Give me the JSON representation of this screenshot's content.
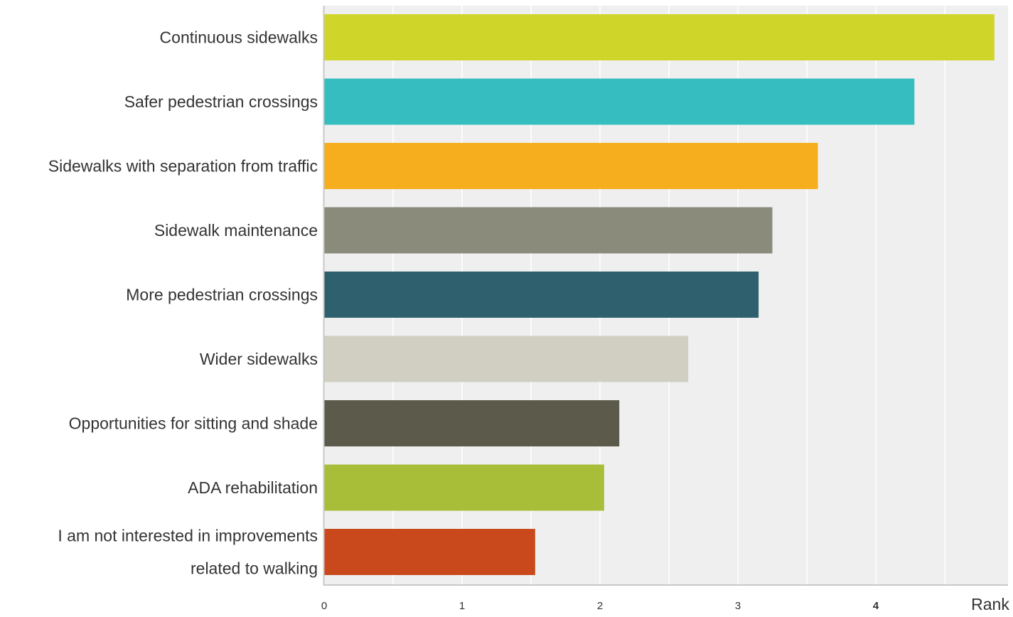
{
  "chart_data": {
    "type": "bar",
    "orientation": "horizontal",
    "categories": [
      [
        "Continuous sidewalks"
      ],
      [
        "Safer pedestrian crossings"
      ],
      [
        "Sidewalks with separation from traffic"
      ],
      [
        "Sidewalk maintenance"
      ],
      [
        "More pedestrian crossings"
      ],
      [
        "Wider sidewalks"
      ],
      [
        "Opportunities for sitting and shade"
      ],
      [
        "ADA rehabilitation"
      ],
      [
        "I am not interested in improvements",
        "related to walking"
      ]
    ],
    "values": [
      4.86,
      4.28,
      3.58,
      3.25,
      3.15,
      2.64,
      2.14,
      2.03,
      1.53
    ],
    "colors": [
      "#d0d629",
      "#35bdbf",
      "#f6ae1e",
      "#8a8b7b",
      "#2e616d",
      "#d0cfc2",
      "#5c5b4b",
      "#a8bd38",
      "#c9491c"
    ],
    "xticks": [
      {
        "value": 0,
        "label": "0",
        "bold": false
      },
      {
        "value": 1,
        "label": "1",
        "bold": false
      },
      {
        "value": 2,
        "label": "2",
        "bold": false
      },
      {
        "value": 3,
        "label": "3",
        "bold": false
      },
      {
        "value": 4,
        "label": "4",
        "bold": true
      }
    ],
    "xlabel": "Rank",
    "xlim": [
      0,
      5
    ],
    "grid": true,
    "plot_background": "#efefef",
    "grid_color": "#ffffff"
  }
}
